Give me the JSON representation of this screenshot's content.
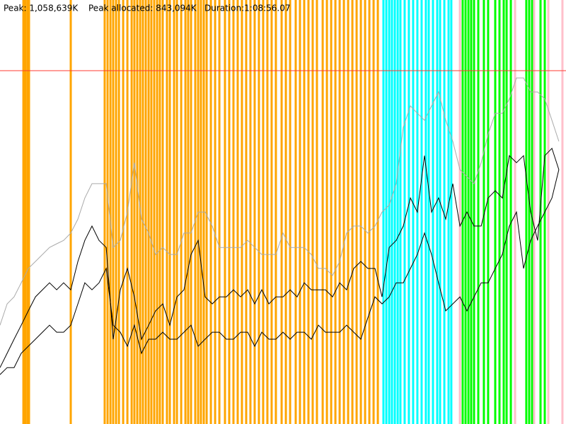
{
  "chart_data": {
    "type": "line",
    "header": [
      "Peak: 1,058,639K",
      "Peak allocated: 843,094K",
      "Duration:1:08:56.07"
    ],
    "xlim": [
      0,
      4136.07
    ],
    "ylim": [
      0,
      1270367
    ],
    "peak": 1058639,
    "peak_color": "#ff3b30",
    "x": [
      0,
      52,
      103,
      155,
      207,
      259,
      310,
      362,
      414,
      465,
      517,
      569,
      620,
      672,
      724,
      776,
      827,
      879,
      931,
      982,
      1034,
      1086,
      1137,
      1189,
      1241,
      1293,
      1344,
      1396,
      1448,
      1499,
      1551,
      1603,
      1654,
      1706,
      1758,
      1810,
      1861,
      1913,
      1965,
      2016,
      2068,
      2120,
      2171,
      2223,
      2275,
      2327,
      2378,
      2430,
      2482,
      2533,
      2585,
      2637,
      2688,
      2740,
      2792,
      2844,
      2895,
      2947,
      2999,
      3050,
      3102,
      3154,
      3205,
      3257,
      3309,
      3361,
      3412,
      3464,
      3516,
      3567,
      3619,
      3671,
      3722,
      3774,
      3826,
      3878,
      3929,
      3981,
      4033,
      4084
    ],
    "series": [
      {
        "color": "#aaaaaa",
        "values": [
          296000,
          360000,
          381000,
          423000,
          466000,
          487000,
          508000,
          529000,
          540000,
          550000,
          572000,
          614000,
          677000,
          720000,
          720000,
          720000,
          529000,
          550000,
          635000,
          783000,
          614000,
          572000,
          508000,
          529000,
          508000,
          508000,
          572000,
          572000,
          635000,
          635000,
          593000,
          529000,
          529000,
          529000,
          529000,
          550000,
          529000,
          508000,
          508000,
          508000,
          572000,
          529000,
          529000,
          529000,
          508000,
          466000,
          466000,
          445000,
          487000,
          572000,
          593000,
          593000,
          572000,
          593000,
          635000,
          656000,
          720000,
          889000,
          953000,
          931000,
          910000,
          953000,
          995000,
          910000,
          847000,
          762000,
          741000,
          720000,
          783000,
          868000,
          931000,
          931000,
          974000,
          1037000,
          1037000,
          995000,
          995000,
          974000,
          910000,
          847000
        ]
      },
      {
        "color": "#000000",
        "values": [
          169000,
          212000,
          254000,
          296000,
          339000,
          381000,
          402000,
          423000,
          402000,
          423000,
          402000,
          487000,
          550000,
          593000,
          550000,
          529000,
          254000,
          402000,
          466000,
          381000,
          254000,
          296000,
          339000,
          360000,
          296000,
          381000,
          402000,
          508000,
          550000,
          381000,
          360000,
          381000,
          381000,
          402000,
          381000,
          402000,
          360000,
          402000,
          360000,
          381000,
          381000,
          402000,
          381000,
          423000,
          402000,
          402000,
          402000,
          381000,
          423000,
          402000,
          466000,
          487000,
          466000,
          466000,
          381000,
          529000,
          550000,
          593000,
          677000,
          635000,
          804000,
          635000,
          677000,
          614000,
          720000,
          593000,
          635000,
          593000,
          593000,
          677000,
          699000,
          677000,
          804000,
          783000,
          804000,
          635000,
          550000,
          804000,
          826000,
          762000
        ]
      },
      {
        "color": "#000000",
        "values": [
          148000,
          169000,
          169000,
          212000,
          233000,
          254000,
          275000,
          296000,
          275000,
          275000,
          296000,
          360000,
          423000,
          402000,
          423000,
          466000,
          296000,
          275000,
          233000,
          296000,
          212000,
          254000,
          254000,
          275000,
          254000,
          254000,
          275000,
          296000,
          233000,
          254000,
          275000,
          275000,
          254000,
          254000,
          275000,
          275000,
          233000,
          275000,
          254000,
          254000,
          275000,
          254000,
          275000,
          275000,
          254000,
          296000,
          275000,
          275000,
          275000,
          296000,
          275000,
          254000,
          318000,
          381000,
          360000,
          381000,
          423000,
          423000,
          466000,
          508000,
          572000,
          508000,
          423000,
          339000,
          360000,
          381000,
          339000,
          381000,
          423000,
          423000,
          466000,
          508000,
          593000,
          635000,
          466000,
          550000,
          593000,
          635000,
          677000,
          762000
        ]
      }
    ],
    "events": [
      {
        "color": "#ffa500",
        "x": [
          171,
          186,
          202,
          212,
          517,
          765,
          786,
          807,
          827,
          848,
          869,
          900,
          931,
          962,
          982,
          1003,
          1024,
          1044,
          1065,
          1086,
          1106,
          1127,
          1148,
          1168,
          1189,
          1220,
          1241,
          1272,
          1293,
          1324,
          1355,
          1375,
          1396,
          1427,
          1448,
          1468,
          1489,
          1510,
          1541,
          1572,
          1603,
          1644,
          1675,
          1706,
          1737,
          1768,
          1799,
          1830,
          1861,
          1892,
          1923,
          1954,
          1985,
          2016,
          2058,
          2089,
          2120,
          2161,
          2192,
          2223,
          2254,
          2285,
          2316,
          2358,
          2389,
          2420,
          2451,
          2482,
          2513,
          2544,
          2575,
          2606,
          2637,
          2668,
          2699,
          2730,
          2761
        ]
      },
      {
        "color": "#00ffff",
        "x": [
          2802,
          2823,
          2844,
          2864,
          2885,
          2906,
          2926,
          2957,
          2988,
          3019,
          3050,
          3081,
          3112,
          3133,
          3164,
          3195,
          3216,
          3247,
          3278,
          3298
        ]
      },
      {
        "color": "#00ff00",
        "x": [
          3381,
          3402,
          3423,
          3443,
          3464,
          3495,
          3536,
          3567,
          3619,
          3650,
          3681,
          3702,
          3733,
          3846,
          3867,
          3888,
          3950,
          3981
        ]
      },
      {
        "color": "#ffc0cb",
        "x": [
          3361,
          3764,
          3903,
          4007,
          4110
        ]
      }
    ]
  }
}
